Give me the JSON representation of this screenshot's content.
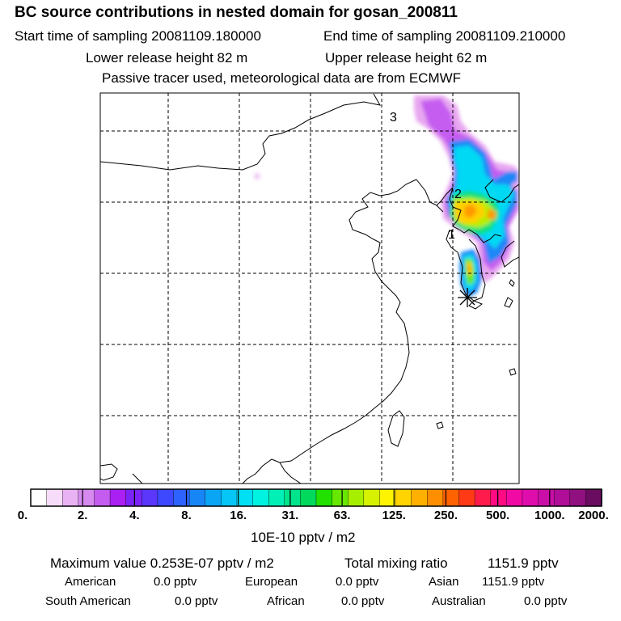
{
  "title": "BC  source contributions in nested domain for gosan_200811",
  "header": {
    "start_label": "Start time of sampling 20081109.180000",
    "end_label": "End time of sampling 20081109.210000",
    "lower_label": "Lower release height   82 m",
    "upper_label": "Upper release height   62 m",
    "note": "Passive tracer used, meteorological data are from ECMWF"
  },
  "map": {
    "labels": [
      "3",
      "2",
      "1"
    ],
    "receptor_marker": "star"
  },
  "chart_data": {
    "type": "heatmap",
    "title": "BC  source contributions in nested domain for gosan_200811",
    "colorbar": {
      "ticks": [
        "0.",
        "2.",
        "4.",
        "8.",
        "16.",
        "31.",
        "63.",
        "125.",
        "250.",
        "500.",
        "1000.",
        "2000."
      ],
      "unit_label": "10E-10 pptv / m2",
      "colors": [
        "#ffffff",
        "#f6dcf9",
        "#e9b2f3",
        "#d68aef",
        "#c45cef",
        "#aa1ff2",
        "#7b24f7",
        "#5a37fb",
        "#3d48ff",
        "#2d62ff",
        "#1885f7",
        "#0aa5f4",
        "#05c6f6",
        "#00e0f5",
        "#00f3e0",
        "#00f0b5",
        "#00e58b",
        "#00d95b",
        "#22e000",
        "#66e800",
        "#a6ef00",
        "#d6f200",
        "#fff400",
        "#ffd400",
        "#ffb000",
        "#ff8e00",
        "#ff6200",
        "#ff3a14",
        "#ff1c4c",
        "#ff0a82",
        "#f20aa4",
        "#df0dac",
        "#c90fa8",
        "#b00d98",
        "#901080",
        "#6a0c5f"
      ]
    },
    "summary": {
      "max_label": "Maximum value  0.253E-07 pptv / m2",
      "total_label": "Total mixing ratio",
      "total_value": "1151.9 pptv",
      "regions": [
        {
          "name": "American",
          "value": "0.0 pptv"
        },
        {
          "name": "European",
          "value": "0.0 pptv"
        },
        {
          "name": "Asian",
          "value": "1151.9 pptv"
        },
        {
          "name": "South American",
          "value": "0.0 pptv"
        },
        {
          "name": "African",
          "value": "0.0 pptv"
        },
        {
          "name": "Australian",
          "value": "0.0 pptv"
        }
      ]
    }
  }
}
